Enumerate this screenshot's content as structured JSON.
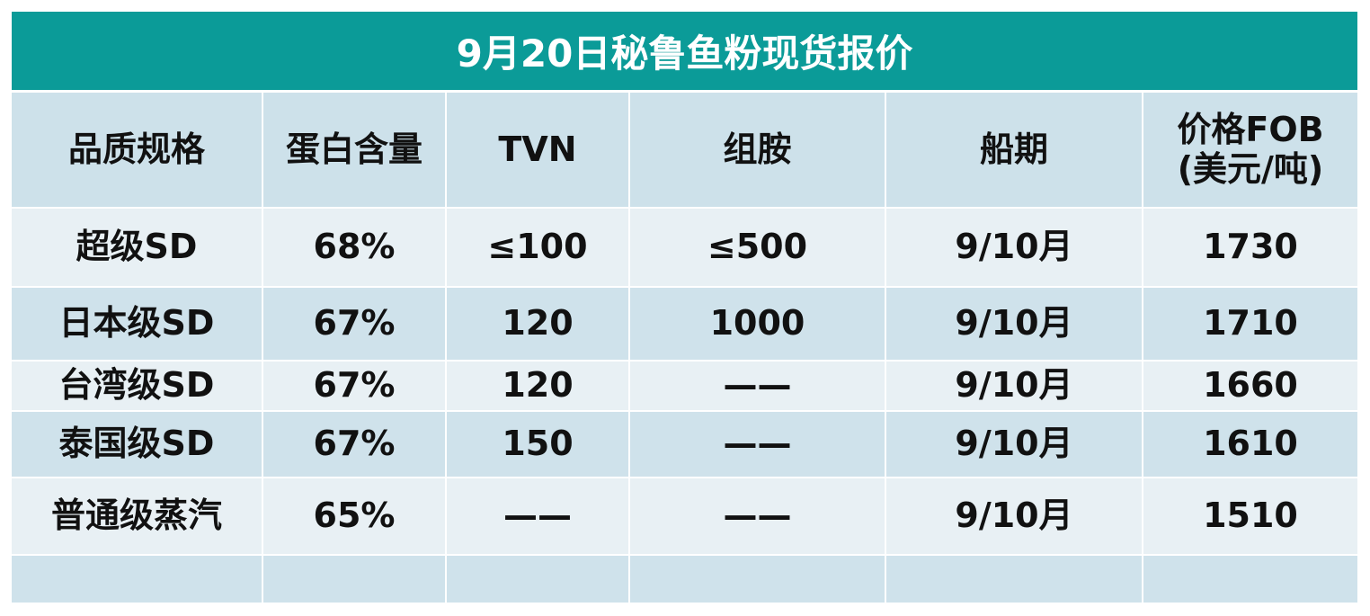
{
  "title": "9月20日秘鲁鱼粉现货报价",
  "table": {
    "headers": [
      "品质规格",
      "蛋白含量",
      "TVN",
      "组胺",
      "船期",
      [
        "价格FOB",
        "(美元/吨)"
      ]
    ],
    "rows": [
      [
        "超级SD",
        "68%",
        "≤100",
        "≤500",
        "9/10月",
        "1730"
      ],
      [
        "日本级SD",
        "67%",
        "120",
        "1000",
        "9/10月",
        "1710"
      ],
      [
        "台湾级SD",
        "67%",
        "120",
        "——",
        "9/10月",
        "1660"
      ],
      [
        "泰国级SD",
        "67%",
        "150",
        "——",
        "9/10月",
        "1610"
      ],
      [
        "普通级蒸汽",
        "65%",
        "——",
        "——",
        "9/10月",
        "1510"
      ]
    ]
  }
}
